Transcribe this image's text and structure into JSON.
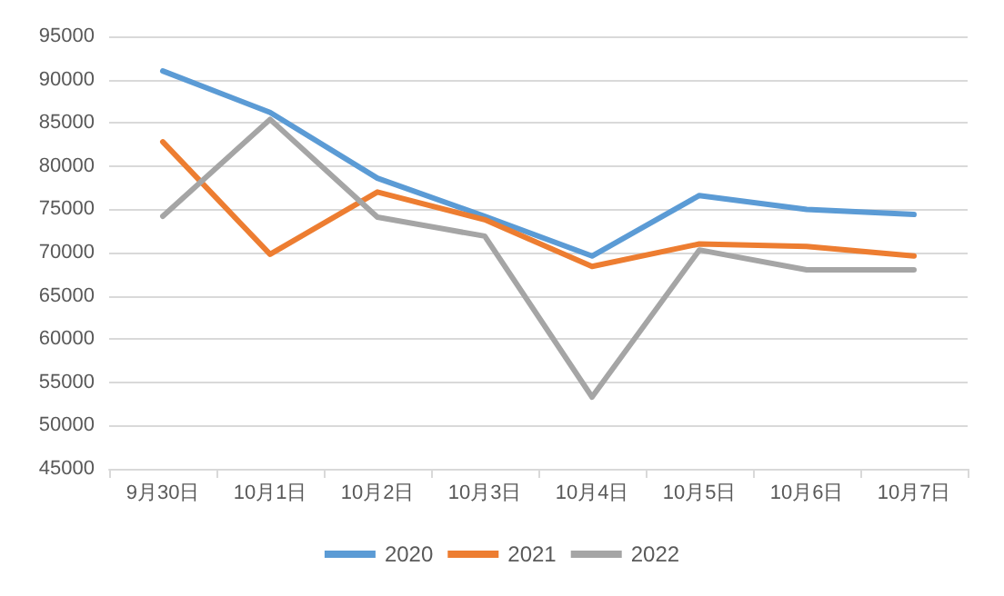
{
  "chart_data": {
    "type": "line",
    "categories": [
      "9月30日",
      "10月1日",
      "10月2日",
      "10月3日",
      "10月4日",
      "10月5日",
      "10月6日",
      "10月7日"
    ],
    "series": [
      {
        "name": "2020",
        "color": "#5b9bd5",
        "values": [
          91000,
          86200,
          78600,
          74200,
          69600,
          76600,
          75000,
          74400
        ]
      },
      {
        "name": "2021",
        "color": "#ed7d31",
        "values": [
          82800,
          69800,
          77000,
          73800,
          68400,
          71000,
          70700,
          69600
        ]
      },
      {
        "name": "2022",
        "color": "#a5a5a5",
        "values": [
          74200,
          85400,
          74100,
          71900,
          53300,
          70300,
          68000,
          68000
        ]
      }
    ],
    "ylim": [
      45000,
      95000
    ],
    "yticks": [
      45000,
      50000,
      55000,
      60000,
      65000,
      70000,
      75000,
      80000,
      85000,
      90000,
      95000
    ],
    "grid": "y",
    "legend": "bottom",
    "marker": "none",
    "line_style": "solid"
  }
}
